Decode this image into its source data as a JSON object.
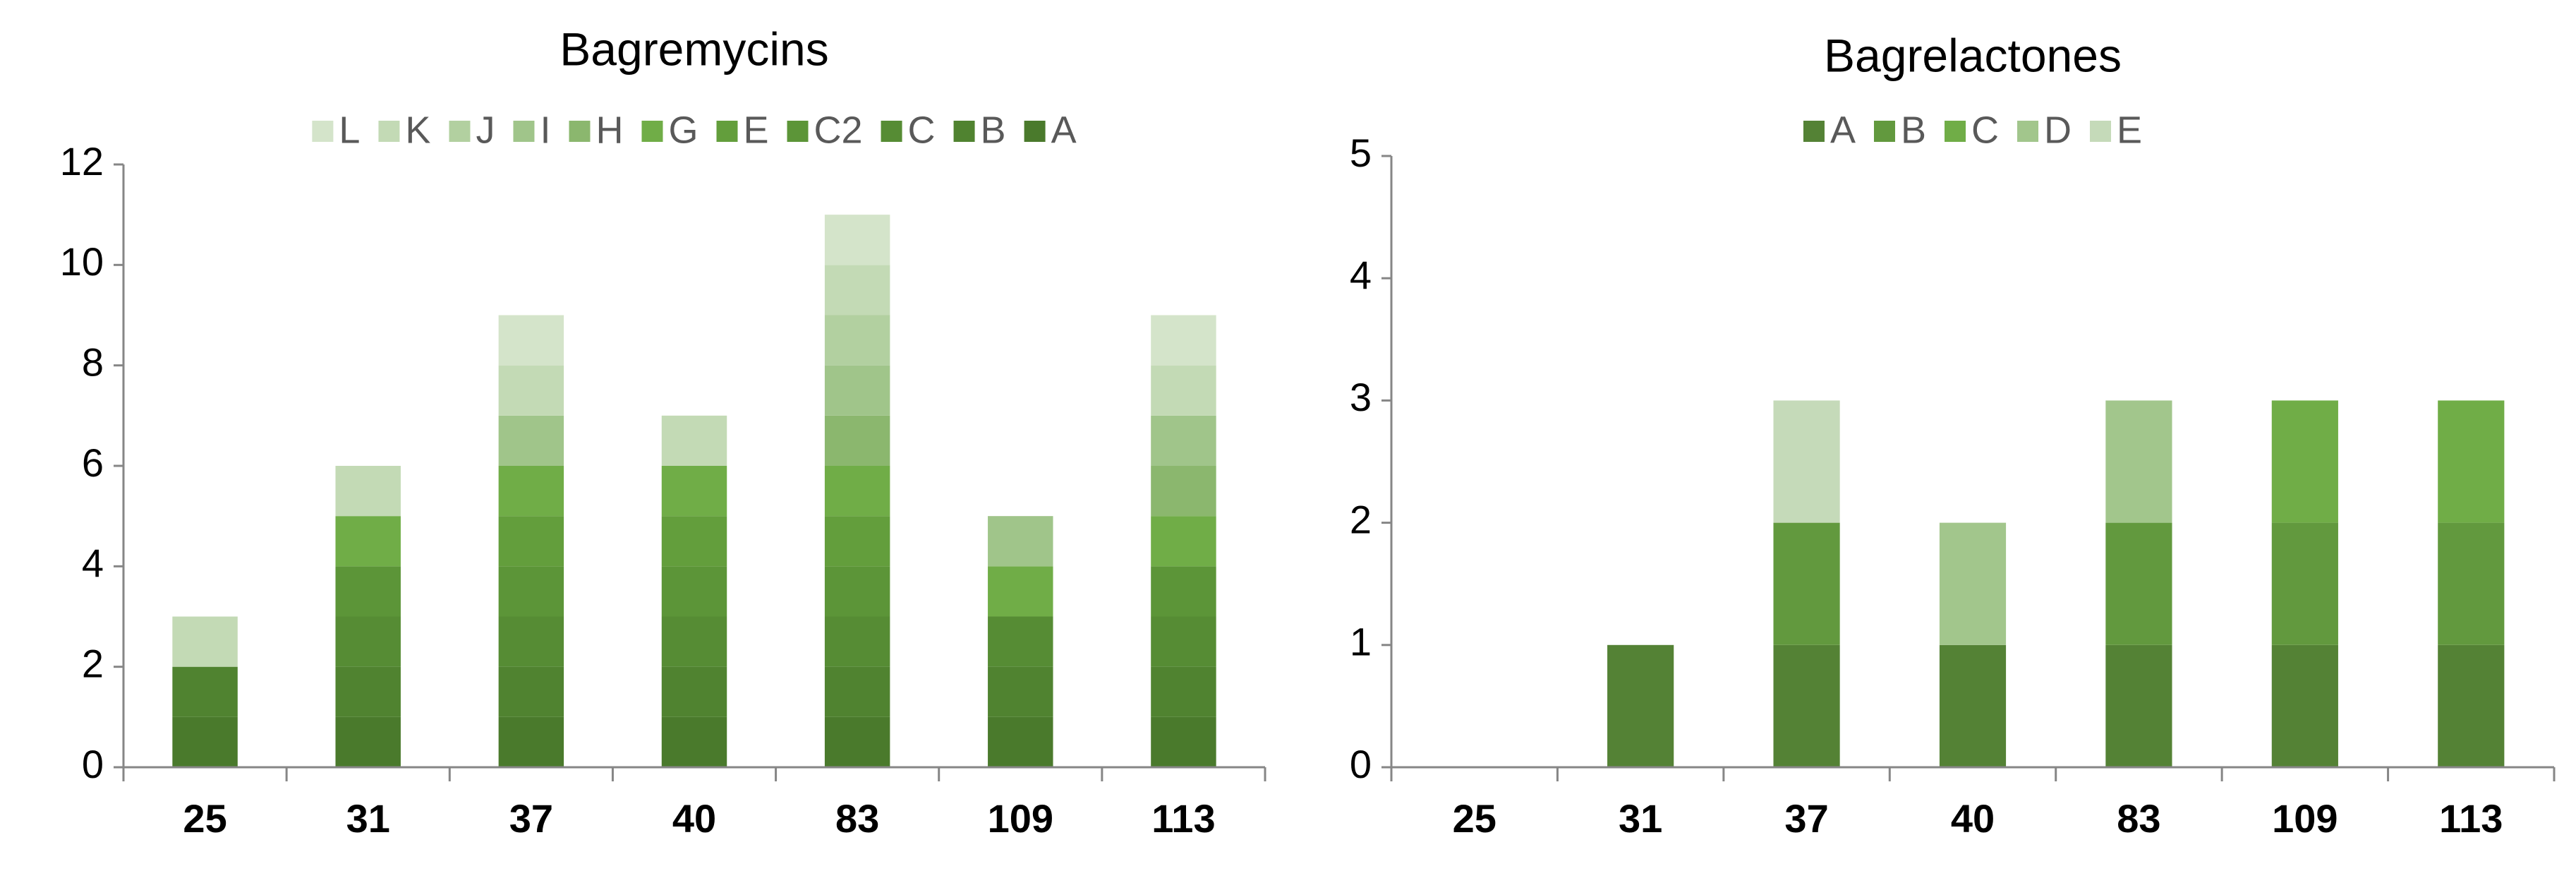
{
  "chart_data": [
    {
      "type": "stacked_bar",
      "title": "Bagremycins",
      "categories": [
        "25",
        "31",
        "37",
        "40",
        "83",
        "109",
        "113"
      ],
      "series": [
        {
          "name": "A",
          "color": "#4a7a2c",
          "values": [
            1,
            1,
            1,
            1,
            1,
            1,
            1
          ]
        },
        {
          "name": "B",
          "color": "#508330",
          "values": [
            1,
            1,
            1,
            1,
            1,
            1,
            1
          ]
        },
        {
          "name": "C",
          "color": "#568c34",
          "values": [
            0,
            1,
            1,
            1,
            1,
            1,
            1
          ]
        },
        {
          "name": "C2",
          "color": "#5c9538",
          "values": [
            0,
            1,
            1,
            1,
            1,
            0,
            1
          ]
        },
        {
          "name": "E",
          "color": "#639e3c",
          "values": [
            0,
            0,
            1,
            1,
            1,
            0,
            0
          ]
        },
        {
          "name": "G",
          "color": "#70ad47",
          "values": [
            0,
            1,
            1,
            1,
            1,
            1,
            1
          ]
        },
        {
          "name": "H",
          "color": "#8bb76e",
          "values": [
            0,
            0,
            0,
            0,
            1,
            0,
            1
          ]
        },
        {
          "name": "I",
          "color": "#a0c58a",
          "values": [
            0,
            0,
            1,
            0,
            1,
            1,
            1
          ]
        },
        {
          "name": "J",
          "color": "#b2d0a0",
          "values": [
            0,
            0,
            0,
            0,
            1,
            0,
            0
          ]
        },
        {
          "name": "K",
          "color": "#c3dab5",
          "values": [
            1,
            1,
            1,
            1,
            1,
            0,
            1
          ]
        },
        {
          "name": "L",
          "color": "#d4e4ca",
          "values": [
            0,
            0,
            1,
            0,
            1,
            0,
            1
          ]
        }
      ],
      "ylim": [
        0,
        12
      ],
      "yticks": [
        0,
        2,
        4,
        6,
        8,
        10,
        12
      ],
      "legend_reversed": true
    },
    {
      "type": "stacked_bar",
      "title": "Bagrelactones",
      "categories": [
        "25",
        "31",
        "37",
        "40",
        "83",
        "109",
        "113"
      ],
      "series": [
        {
          "name": "A",
          "color": "#548235",
          "values": [
            0,
            1,
            1,
            1,
            1,
            1,
            1
          ]
        },
        {
          "name": "B",
          "color": "#62993e",
          "values": [
            0,
            0,
            1,
            0,
            1,
            1,
            1
          ]
        },
        {
          "name": "C",
          "color": "#70ad47",
          "values": [
            0,
            0,
            0,
            0,
            0,
            1,
            1
          ]
        },
        {
          "name": "D",
          "color": "#a2c68c",
          "values": [
            0,
            0,
            0,
            1,
            1,
            0,
            0
          ]
        },
        {
          "name": "E",
          "color": "#c5dab9",
          "values": [
            0,
            0,
            1,
            0,
            0,
            0,
            0
          ]
        }
      ],
      "ylim": [
        0,
        5
      ],
      "yticks": [
        0,
        1,
        2,
        3,
        4,
        5
      ],
      "legend_reversed": false
    }
  ]
}
